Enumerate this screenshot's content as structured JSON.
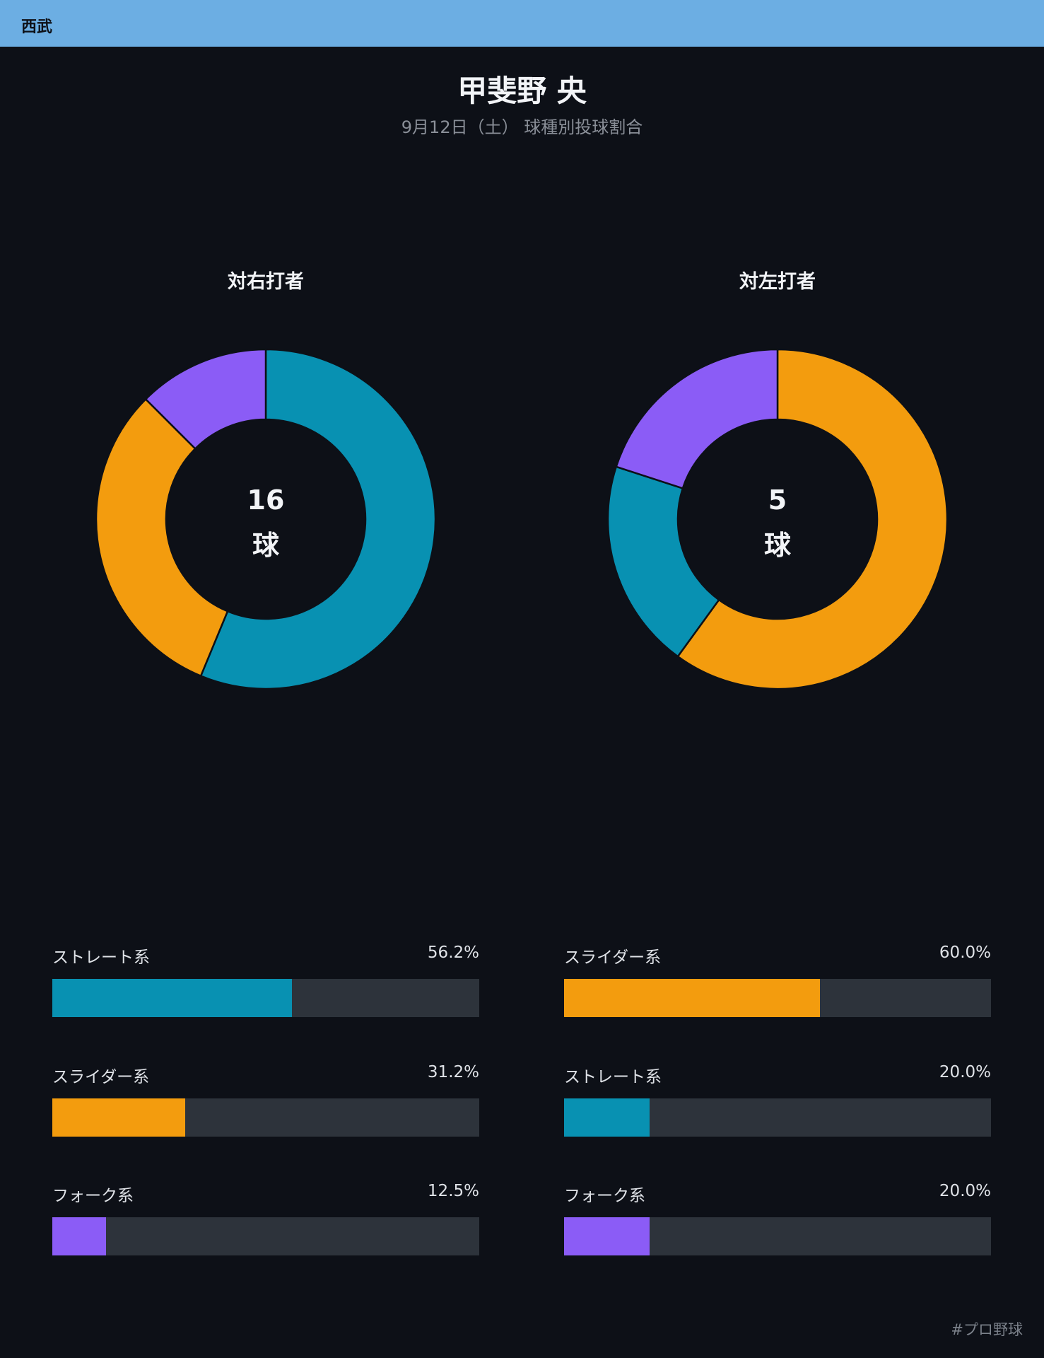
{
  "header": {
    "team": "西武"
  },
  "title": "甲斐野 央",
  "subtitle": "9月12日（土） 球種別投球割合",
  "colors": {
    "straight": "#0891b2",
    "slider": "#f39c0e",
    "fork": "#8b5cf6"
  },
  "chart_data": [
    {
      "type": "pie",
      "title": "対右打者",
      "center_value": "16",
      "center_unit": "球",
      "slices": [
        {
          "label": "ストレート系",
          "value": 56.2,
          "display": "56.2%",
          "color": "#0891b2"
        },
        {
          "label": "スライダー系",
          "value": 31.2,
          "display": "31.2%",
          "color": "#f39c0e"
        },
        {
          "label": "フォーク系",
          "value": 12.5,
          "display": "12.5%",
          "color": "#8b5cf6"
        }
      ]
    },
    {
      "type": "pie",
      "title": "対左打者",
      "center_value": "5",
      "center_unit": "球",
      "slices": [
        {
          "label": "スライダー系",
          "value": 60.0,
          "display": "60.0%",
          "color": "#f39c0e"
        },
        {
          "label": "ストレート系",
          "value": 20.0,
          "display": "20.0%",
          "color": "#0891b2"
        },
        {
          "label": "フォーク系",
          "value": 20.0,
          "display": "20.0%",
          "color": "#8b5cf6"
        }
      ]
    }
  ],
  "footer": {
    "hashtag": "#プロ野球"
  }
}
